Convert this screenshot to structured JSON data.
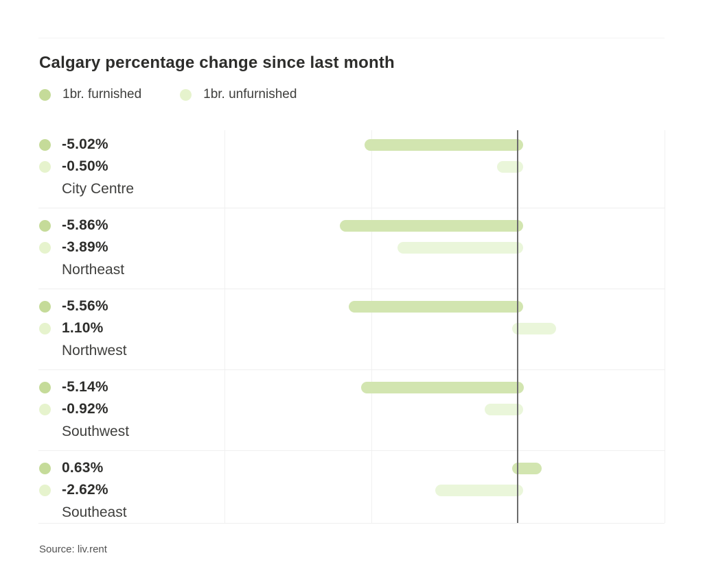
{
  "chart_data": {
    "type": "bar",
    "orientation": "horizontal",
    "title": "Calgary percentage change since last month",
    "categories": [
      "City Centre",
      "Northeast",
      "Northwest",
      "Southwest",
      "Southeast"
    ],
    "series": [
      {
        "name": "1br. furnished",
        "dot_color": "#c5db99",
        "bar_color": "#d2e5b0",
        "values": [
          -5.02,
          -5.86,
          -5.56,
          -5.14,
          0.63
        ]
      },
      {
        "name": "1br. unfurnished",
        "dot_color": "#e6f3cd",
        "bar_color": "#eaf6da",
        "values": [
          -0.5,
          -3.89,
          1.1,
          -0.92,
          -2.62
        ]
      }
    ],
    "value_labels": [
      [
        "-5.02%",
        "-0.50%"
      ],
      [
        "-5.86%",
        "-3.89%"
      ],
      [
        "-5.56%",
        "1.10%"
      ],
      [
        "-5.14%",
        "-0.92%"
      ],
      [
        "0.63%",
        "-2.62%"
      ]
    ],
    "xlim": [
      -10,
      5
    ],
    "gridlines_pct": [
      -10,
      -5,
      0,
      5
    ],
    "grid": "vertical-light",
    "zero_axis": true,
    "legend_position": "top-left",
    "source": "Source: liv.rent",
    "colors": {
      "furnished": "#c5db99",
      "unfurnished": "#e6f3cd",
      "zero_axis_line": "#6b6b6b",
      "gridline": "#f0f0f0"
    }
  }
}
